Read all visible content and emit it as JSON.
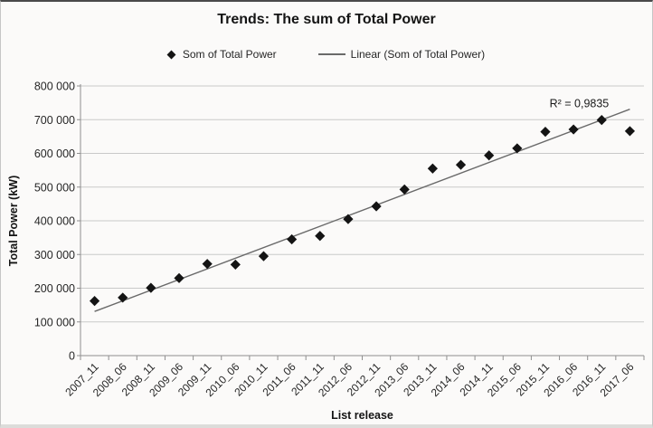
{
  "chart": {
    "title": "Trends: The sum of Total Power",
    "ylabel": "Total Power (kW)",
    "xlabel": "List release",
    "legend": [
      {
        "marker": "diamond",
        "label": "Som of Total Power"
      },
      {
        "marker": "line",
        "label": "Linear (Som of Total Power)"
      }
    ],
    "annotation": "R² = 0,9835"
  },
  "chart_data": {
    "type": "scatter",
    "title": "Trends: The sum of Total Power",
    "xlabel": "List release",
    "ylabel": "Total Power (kW)",
    "categories": [
      "2007_11",
      "2008_06",
      "2008_11",
      "2009_06",
      "2009_11",
      "2010_06",
      "2010_11",
      "2011_06",
      "2011_11",
      "2012_06",
      "2012_11",
      "2013_06",
      "2013_11",
      "2014_06",
      "2014_11",
      "2015_06",
      "2015_11",
      "2016_06",
      "2016_11",
      "2017_06"
    ],
    "series": [
      {
        "name": "Som of Total Power",
        "type": "scatter",
        "marker": "diamond",
        "values": [
          162000,
          172000,
          201000,
          230000,
          272000,
          270000,
          295000,
          345000,
          355000,
          405000,
          443000,
          493000,
          555000,
          566000,
          594000,
          615000,
          664000,
          671000,
          699000,
          666000
        ]
      },
      {
        "name": "Linear (Som of Total Power)",
        "type": "trendline",
        "r_squared_label": "R² = 0,9835",
        "endpoint_values": [
          131000,
          731000
        ]
      }
    ],
    "ylim": [
      0,
      800000
    ],
    "ytick_step": 100000,
    "ytick_labels": [
      "0",
      "100 000",
      "200 000",
      "300 000",
      "400 000",
      "500 000",
      "600 000",
      "700 000",
      "800 000"
    ],
    "grid": true,
    "legend_position": "top"
  },
  "colors": {
    "marker": "#141414",
    "trendline": "#6a6a6a",
    "gridline": "#c9c9c9",
    "axis": "#8f8f8f",
    "tick_text": "#262626",
    "annotation_text": "#1a1a1a"
  }
}
